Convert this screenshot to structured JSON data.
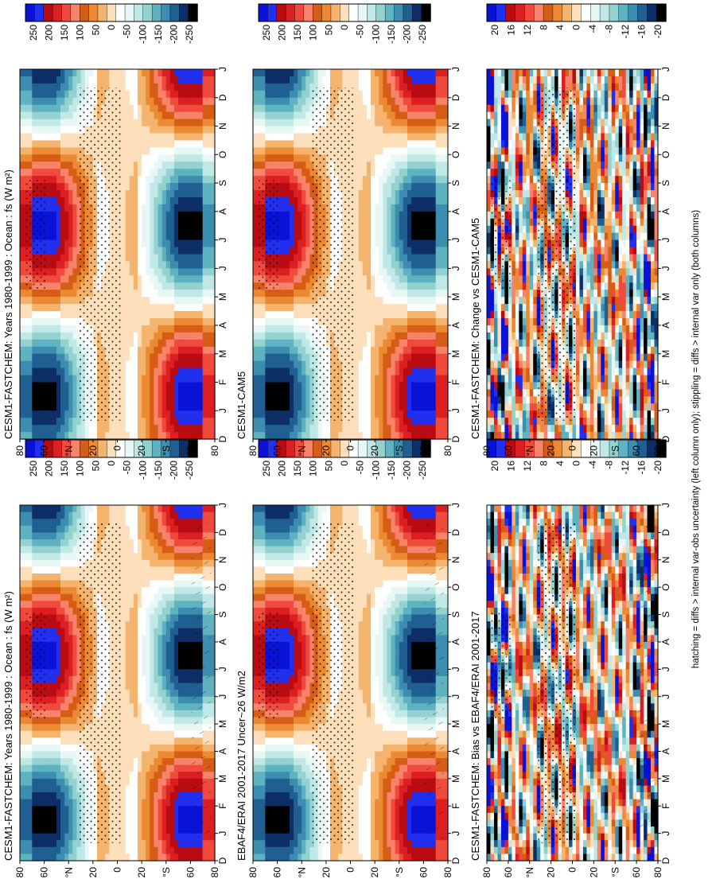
{
  "footer": "hatching = diffs > internal var-obs uncertainty (left column only); stippling = diffs > internal var only (both columns)",
  "months": [
    "D",
    "J",
    "F",
    "M",
    "A",
    "M",
    "J",
    "J",
    "A",
    "S",
    "O",
    "N",
    "D",
    "J"
  ],
  "lat_labels": [
    "80",
    "60",
    "°N",
    "20",
    "0",
    "20",
    "°S",
    "60",
    "80"
  ],
  "units_label": "W m-2",
  "colors": {
    "flux": [
      "#0a12d8",
      "#2030ee",
      "#b80c12",
      "#dc1f22",
      "#ef4a3c",
      "#f7836a",
      "#d65d16",
      "#ec8a33",
      "#f5b46e",
      "#fde0bb",
      "#ffffff",
      "#e6f7f6",
      "#bfe8e6",
      "#94d2d0",
      "#5fb3c0",
      "#3c8db0",
      "#205f92",
      "#0d2f66",
      "#000000"
    ],
    "diff": [
      "#0a12d8",
      "#2030ee",
      "#b80c12",
      "#dc1f22",
      "#ef4a3c",
      "#f7836a",
      "#d65d16",
      "#ec8a33",
      "#f5b46e",
      "#fde0bb",
      "#ffffff",
      "#e6f7f6",
      "#bfe8e6",
      "#94d2d0",
      "#5fb3c0",
      "#3c8db0",
      "#205f92",
      "#0d2f66",
      "#000000"
    ]
  },
  "colorbars": {
    "flux_ticks": [
      "250",
      "200",
      "150",
      "100",
      "50",
      "0",
      "-50",
      "-100",
      "-150",
      "-200",
      "-250"
    ],
    "diff_ticks": [
      "20",
      "16",
      "12",
      "8",
      "4",
      "0",
      "-4",
      "-8",
      "-12",
      "-16",
      "-20"
    ]
  },
  "chart_data": [
    {
      "id": "p1",
      "type": "heatmap",
      "title": "CESM1-FASTCHEM: Years 1980-1999 : Ocean : fs (W m²)",
      "x": "month",
      "y": "latitude",
      "zlim": [
        -250,
        250
      ],
      "field": "flux",
      "stipple": true,
      "hatch": true
    },
    {
      "id": "p2",
      "type": "heatmap",
      "title": "CESM1-FASTCHEM: Years 1980-1999 : Ocean : fs (W m²)",
      "x": "month",
      "y": "latitude",
      "zlim": [
        -250,
        250
      ],
      "field": "flux",
      "stipple": true,
      "hatch": false
    },
    {
      "id": "p3",
      "type": "heatmap",
      "title": "EBAF4/ERAI 2001-2017 Uncer~26 W/m2",
      "x": "month",
      "y": "latitude",
      "zlim": [
        -250,
        250
      ],
      "field": "flux",
      "stipple": true,
      "hatch": true
    },
    {
      "id": "p4",
      "type": "heatmap",
      "title": "CESM1-CAM5",
      "x": "month",
      "y": "latitude",
      "zlim": [
        -250,
        250
      ],
      "field": "flux",
      "stipple": true,
      "hatch": false
    },
    {
      "id": "p5",
      "type": "heatmap",
      "title": "CESM1-FASTCHEM: Bias vs EBAF4/ERAI 2001-2017",
      "x": "month",
      "y": "latitude",
      "zlim": [
        -20,
        20
      ],
      "field": "bias",
      "stipple": true,
      "hatch": true
    },
    {
      "id": "p6",
      "type": "heatmap",
      "title": "CESM1-FASTCHEM: Change vs CESM1-CAM5",
      "x": "month",
      "y": "latitude",
      "zlim": [
        -20,
        20
      ],
      "field": "change",
      "stipple": true,
      "hatch": false
    }
  ]
}
